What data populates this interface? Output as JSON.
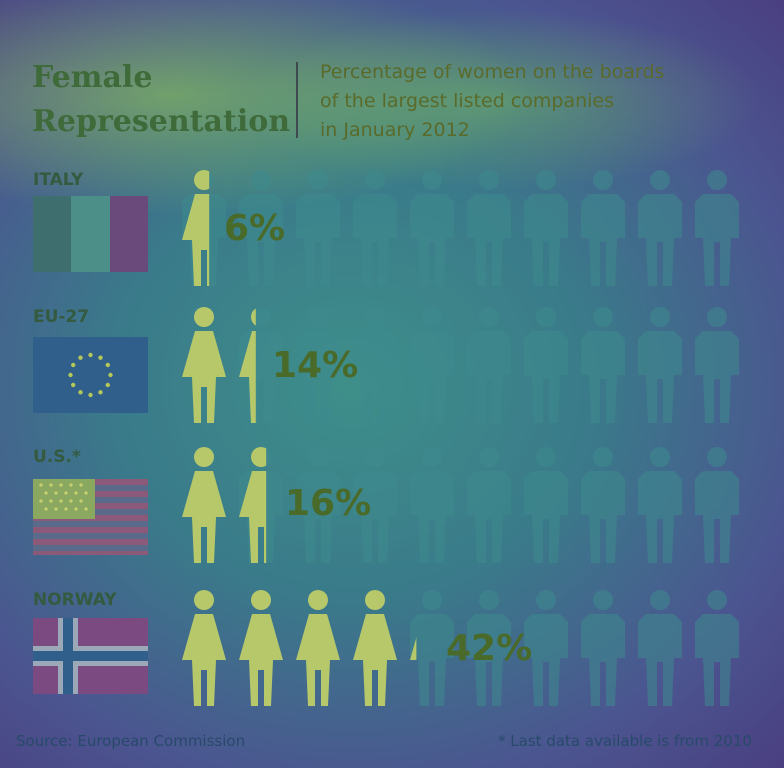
{
  "header": {
    "title_line1": "Female",
    "title_line2": "Representation",
    "subtitle_line1": "Percentage of women on the boards",
    "subtitle_line2": "of the largest listed companies",
    "subtitle_line3": "in January 2012"
  },
  "footer": {
    "source": "Source: European Commission",
    "note": "* Last data available is from 2010"
  },
  "colors": {
    "female_figure": "#b7c86a",
    "male_figure": "#3e8b8e",
    "text_dark": "#3f6a3a"
  },
  "chart_data": {
    "type": "bar",
    "title": "Female Representation",
    "subtitle": "Percentage of women on the boards of the largest listed companies in January 2012",
    "categories": [
      "ITALY",
      "EU-27",
      "U.S.*",
      "NORWAY"
    ],
    "values": [
      6,
      14,
      16,
      42
    ],
    "value_labels": [
      "6%",
      "14%",
      "16%",
      "42%"
    ],
    "unit": "%",
    "figures_per_row": 10,
    "ylim": [
      0,
      100
    ]
  }
}
